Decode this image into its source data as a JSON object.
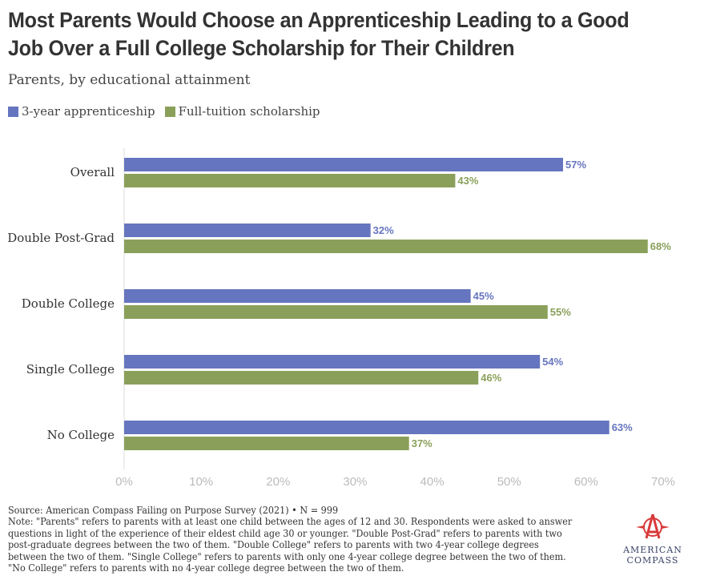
{
  "title": "Most Parents Would Choose an Apprenticeship Leading to a Good Job Over a Full College Scholarship for Their Children",
  "subtitle": "Parents, by educational attainment",
  "colors": {
    "apprenticeship": "#6675bf",
    "scholarship": "#8aa05a",
    "logo": "#d9393a"
  },
  "chart_data": {
    "type": "bar",
    "orientation": "horizontal",
    "categories": [
      "Overall",
      "Double Post-Grad",
      "Double College",
      "Single College",
      "No College"
    ],
    "series": [
      {
        "name": "3-year apprenticeship",
        "values": [
          57,
          32,
          45,
          54,
          63
        ]
      },
      {
        "name": "Full-tuition scholarship",
        "values": [
          43,
          68,
          55,
          46,
          37
        ]
      }
    ],
    "xlim": [
      0,
      70
    ],
    "xticks": [
      "0%",
      "10%",
      "20%",
      "30%",
      "40%",
      "50%",
      "60%",
      "70%"
    ],
    "legend": "top-left",
    "grid": false
  },
  "footer": {
    "source": "Source: American Compass Failing on Purpose Survey (2021) • N = 999",
    "note": "Note: \"Parents\" refers to parents with at least one child between the ages of 12 and 30. Respondents were asked to answer questions in light of the experience of their eldest child age 30 or younger. \"Double Post-Grad\" refers to parents with two post-graduate degrees between the two of them. \"Double College\" refers to parents with two 4-year college degrees between the two of them. \"Single College\" refers to parents with only one 4-year college degree between the two of them. \"No College\" refers to parents with no 4-year college degree between the two of them."
  },
  "logo": {
    "line1": "AMERICAN",
    "line2": "COMPASS"
  }
}
